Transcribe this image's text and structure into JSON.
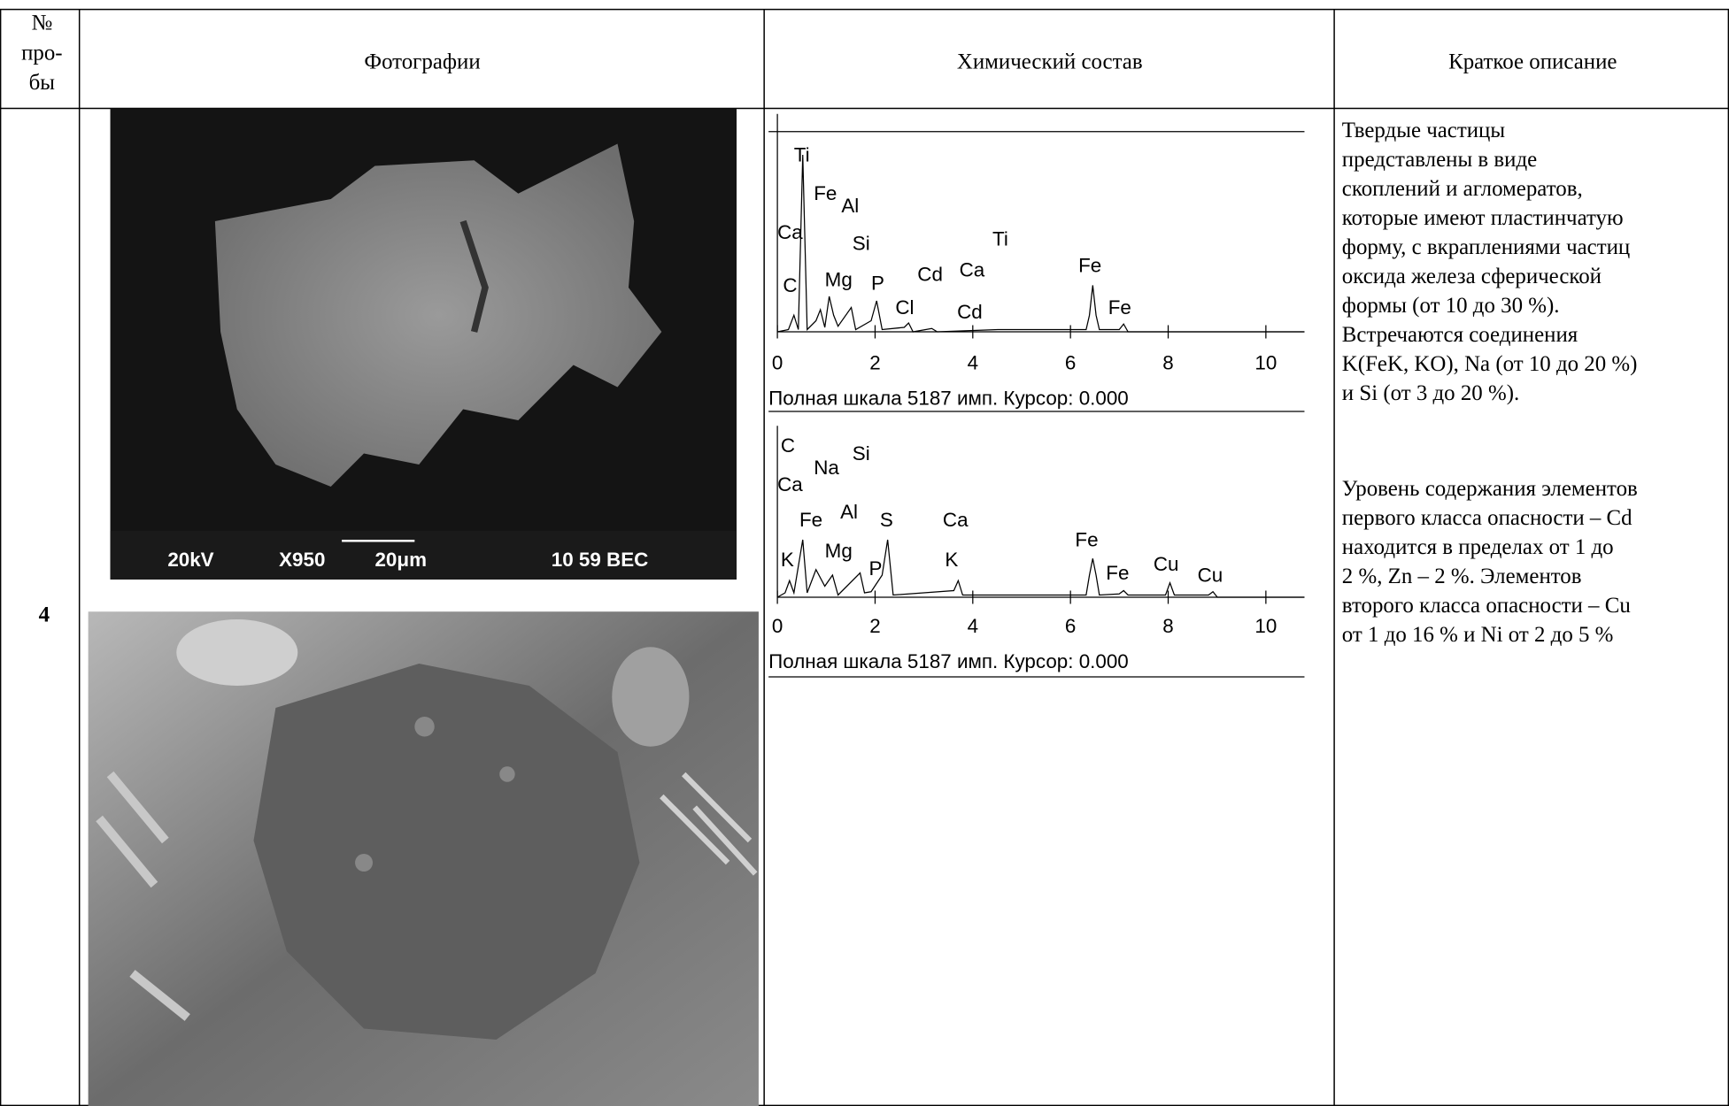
{
  "table": {
    "header": {
      "number": [
        "№",
        "про-",
        "бы"
      ],
      "photos": "Фотографии",
      "composition": "Химический состав",
      "description": "Краткое описание"
    },
    "row": {
      "number": "4",
      "photos": [
        {
          "overlay": [
            "20kV",
            "X950",
            "20μm",
            "10 59 BEC"
          ]
        }
      ],
      "spectra": [
        {
          "labels": [
            "Ti",
            "Fe",
            "Al",
            "Ca",
            "Si",
            "Mg",
            "P",
            "Cd",
            "Ca",
            "Ti",
            "Fe",
            "C",
            "Cl",
            "Cd",
            "Fe"
          ],
          "xticks": [
            0,
            2,
            4,
            6,
            8,
            10
          ],
          "caption": "Полная шкала 5187 имп. Курсор: 0.000"
        },
        {
          "labels": [
            "C",
            "Na",
            "Si",
            "Ca",
            "Fe",
            "Al",
            "S",
            "Ca",
            "Mg",
            "K",
            "P",
            "K",
            "Fe",
            "Fe",
            "Cu",
            "Cu"
          ],
          "xticks": [
            0,
            2,
            4,
            6,
            8,
            10
          ],
          "caption": "Полная шкала 5187 имп. Курсор: 0.000"
        }
      ],
      "description": [
        [
          "Твердые частицы",
          "представлены в виде",
          "скоплений и агломератов,",
          "которые имеют пластинчатую",
          "форму, с вкраплениями частиц",
          "оксида железа сферической",
          "формы (от 10  до 30 %).",
          "Встречаются соединения",
          "K(FeK, KO), Na (от 10 до 20 %)",
          "и Si (от 3 до 20 %)."
        ],
        [
          "Уровень содержания элементов",
          "первого класса опасности – Cd",
          "находится в пределах от 1 до",
          "2 %, Zn – 2 %. Элементов",
          "второго класса опасности – Cu",
          "от 1  до 16 % и Ni от 2 до 5 %"
        ]
      ]
    }
  }
}
